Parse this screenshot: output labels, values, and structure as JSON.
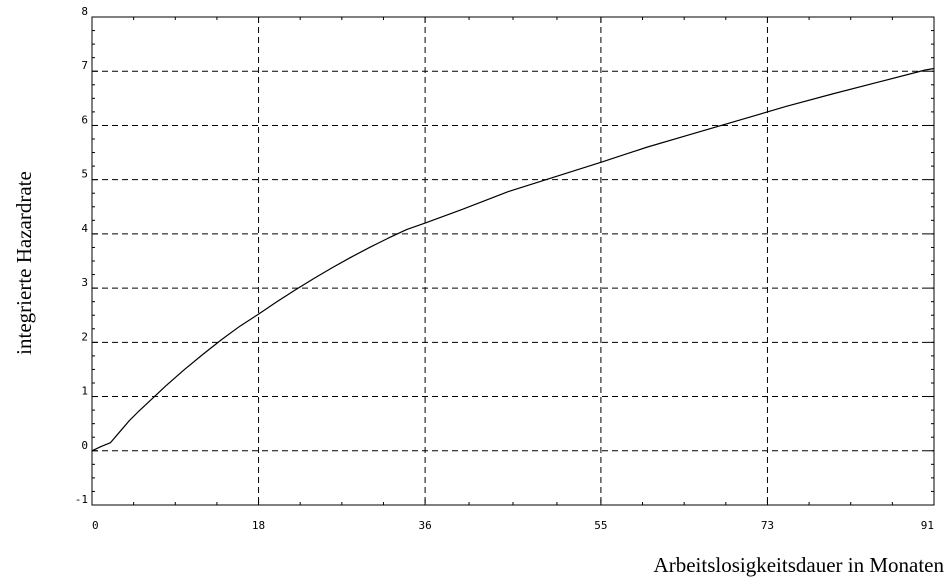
{
  "chart_data": {
    "type": "line",
    "title": "",
    "xlabel": "Arbeitslosigkeitsdauer in Monaten",
    "ylabel": "integrierte Hazardrate",
    "xlim": [
      0,
      91
    ],
    "ylim": [
      -1,
      8
    ],
    "x_ticks": [
      0,
      18,
      36,
      55,
      73,
      91
    ],
    "x_tick_labels": [
      "0",
      "18",
      "36",
      "55",
      "73",
      "91"
    ],
    "y_ticks": [
      -1,
      0,
      1,
      2,
      3,
      4,
      5,
      6,
      7,
      8
    ],
    "y_tick_labels": [
      "-1",
      "0",
      "1",
      "2",
      "3",
      "4",
      "5",
      "6",
      "7",
      "8"
    ],
    "grid": true,
    "grid_style": "dashed",
    "line_color": "#000000",
    "series": [
      {
        "x": [
          0,
          1,
          2,
          3,
          4,
          5,
          6,
          8,
          10,
          12,
          14,
          16,
          18,
          20,
          22,
          24,
          26,
          28,
          30,
          32,
          34,
          36,
          40,
          45,
          50,
          55,
          60,
          65,
          70,
          75,
          80,
          85,
          90,
          91
        ],
        "y": [
          0.0,
          0.08,
          0.15,
          0.35,
          0.55,
          0.72,
          0.88,
          1.2,
          1.5,
          1.78,
          2.05,
          2.3,
          2.52,
          2.75,
          2.97,
          3.18,
          3.38,
          3.57,
          3.75,
          3.92,
          4.08,
          4.2,
          4.45,
          4.78,
          5.05,
          5.32,
          5.6,
          5.85,
          6.1,
          6.35,
          6.58,
          6.8,
          7.02,
          7.05
        ]
      }
    ]
  }
}
